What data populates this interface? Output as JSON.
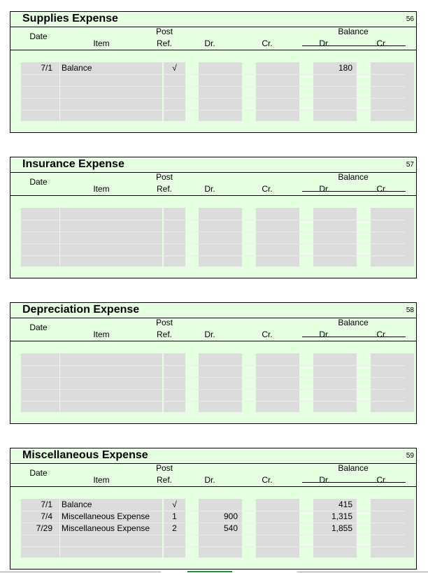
{
  "headers": {
    "date": "Date",
    "item": "Item",
    "post": "Post",
    "ref": "Ref.",
    "dr": "Dr.",
    "cr": "Cr.",
    "balance": "Balance",
    "bal_dr": "Dr.",
    "bal_cr": "Cr."
  },
  "ledgers": [
    {
      "title": "Supplies Expense",
      "number": "56",
      "rows": [
        {
          "date": "7/1",
          "item": "Balance",
          "ref": "√",
          "dr": "",
          "cr": "",
          "bal_dr": "180",
          "bal_cr": ""
        }
      ]
    },
    {
      "title": "Insurance Expense",
      "number": "57",
      "rows": []
    },
    {
      "title": "Depreciation Expense",
      "number": "58",
      "rows": []
    },
    {
      "title": "Miscellaneous Expense",
      "number": "59",
      "rows": [
        {
          "date": "7/1",
          "item": "Balance",
          "ref": "√",
          "dr": "",
          "cr": "",
          "bal_dr": "415",
          "bal_cr": ""
        },
        {
          "date": "7/4",
          "item": "Miscellaneous Expense",
          "ref": "1",
          "dr": "900",
          "cr": "",
          "bal_dr": "1,315",
          "bal_cr": ""
        },
        {
          "date": "7/29",
          "item": "Miscellaneous Expense",
          "ref": "2",
          "dr": "540",
          "cr": "",
          "bal_dr": "1,855",
          "bal_cr": ""
        }
      ]
    }
  ]
}
